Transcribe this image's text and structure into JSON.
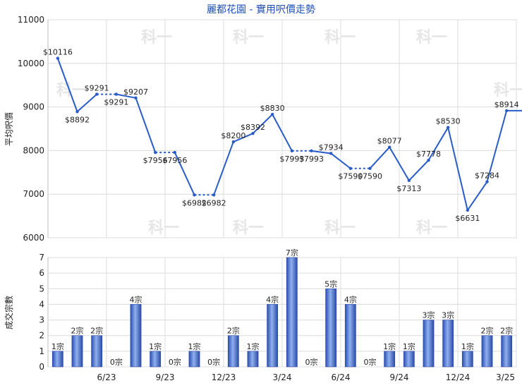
{
  "chart_data": [
    {
      "type": "line",
      "title": "麗都花園 - 實用呎價走勢",
      "ylabel": "平均呎價",
      "ylim": [
        6000,
        11000
      ],
      "yticks": [
        6000,
        7000,
        8000,
        9000,
        10000,
        11000
      ],
      "grid": true,
      "color": "#2a5cc7",
      "x_tick_labels": [
        "6/23",
        "9/23",
        "12/23",
        "3/24",
        "6/24",
        "9/24",
        "12/24",
        "3/25"
      ],
      "months": [
        "3/23",
        "4/23",
        "5/23",
        "6/23",
        "7/23",
        "8/23",
        "9/23",
        "10/23",
        "11/23",
        "12/23",
        "1/24",
        "2/24",
        "3/24",
        "4/24",
        "5/24",
        "6/24",
        "7/24",
        "8/24",
        "9/24",
        "10/24",
        "11/24",
        "12/24",
        "1/25",
        "2/25",
        "3/25"
      ],
      "values": [
        10116,
        8892,
        9291,
        9291,
        9207,
        7956,
        7956,
        6982,
        6982,
        8200,
        8392,
        8830,
        7993,
        7993,
        7934,
        7590,
        7590,
        8077,
        7313,
        7778,
        8530,
        6631,
        7284,
        8914,
        8914
      ],
      "carried_forward": [
        false,
        false,
        false,
        true,
        false,
        false,
        true,
        false,
        true,
        false,
        false,
        false,
        false,
        true,
        false,
        false,
        true,
        false,
        false,
        false,
        false,
        false,
        false,
        false,
        false
      ],
      "point_labels": [
        "$10116",
        "$8892",
        "$9291",
        "$9291",
        "$9207",
        "$7956",
        "$7956",
        "$6982",
        "$6982",
        "$8200",
        "$8392",
        "$8830",
        "$7993",
        "$7993",
        "$7934",
        "$7590",
        "$7590",
        "$8077",
        "$7313",
        "$7778",
        "$8530",
        "$6631",
        "$7284",
        "$8914",
        ""
      ]
    },
    {
      "type": "bar",
      "ylabel": "成交宗數",
      "ylim": [
        0,
        7
      ],
      "yticks": [
        0,
        1,
        2,
        3,
        4,
        5,
        6,
        7
      ],
      "grid": true,
      "x_tick_labels": [
        "6/23",
        "9/23",
        "12/23",
        "3/24",
        "6/24",
        "9/24",
        "12/24",
        "3/25"
      ],
      "values": [
        1,
        2,
        2,
        0,
        4,
        1,
        0,
        1,
        0,
        2,
        1,
        4,
        7,
        0,
        5,
        4,
        0,
        1,
        1,
        3,
        3,
        1,
        2,
        2
      ],
      "bar_labels": [
        "1宗",
        "2宗",
        "2宗",
        "0宗",
        "4宗",
        "1宗",
        "0宗",
        "1宗",
        "0宗",
        "2宗",
        "1宗",
        "4宗",
        "7宗",
        "0宗",
        "5宗",
        "4宗",
        "0宗",
        "1宗",
        "1宗",
        "3宗",
        "3宗",
        "1宗",
        "2宗",
        "2宗"
      ]
    }
  ],
  "watermark": "科一"
}
